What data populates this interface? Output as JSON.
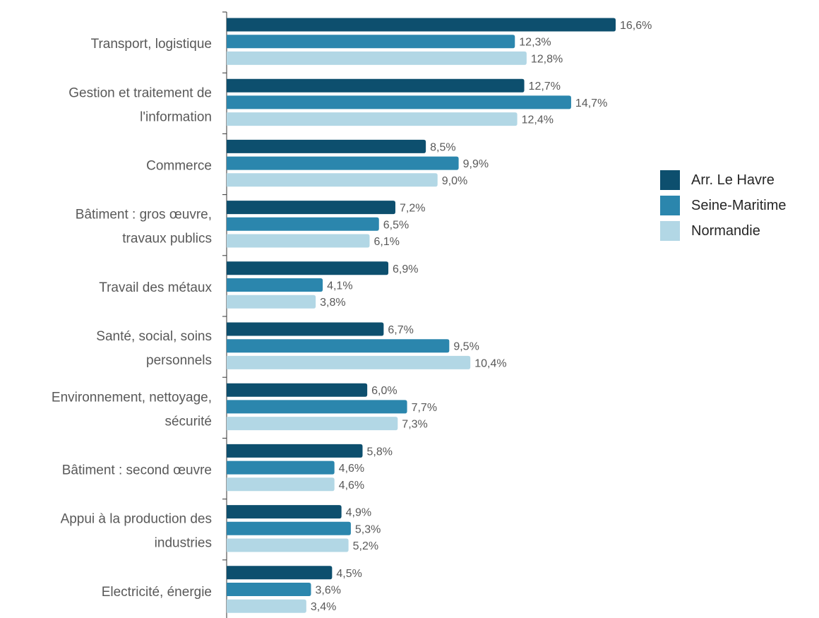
{
  "chart_data": {
    "type": "bar",
    "orientation": "horizontal",
    "categories": [
      "Transport, logistique",
      "Gestion et traitement de l'information",
      "Commerce",
      "Bâtiment : gros œuvre, travaux publics",
      "Travail des métaux",
      "Santé, social, soins personnels",
      "Environnement, nettoyage, sécurité",
      "Bâtiment : second œuvre",
      "Appui à la production des industries",
      "Electricité, énergie"
    ],
    "category_lines": [
      [
        "Transport, logistique"
      ],
      [
        "Gestion et traitement de",
        "l'information"
      ],
      [
        "Commerce"
      ],
      [
        "Bâtiment : gros œuvre,",
        "travaux publics"
      ],
      [
        "Travail des métaux"
      ],
      [
        "Santé, social, soins",
        "personnels"
      ],
      [
        "Environnement, nettoyage,",
        "sécurité"
      ],
      [
        "Bâtiment : second œuvre"
      ],
      [
        "Appui à la production des",
        "industries"
      ],
      [
        "Electricité, énergie"
      ]
    ],
    "series": [
      {
        "name": "Arr. Le Havre",
        "color": "#0d4f6e",
        "values": [
          16.6,
          12.7,
          8.5,
          7.2,
          6.9,
          6.7,
          6.0,
          5.8,
          4.9,
          4.5
        ],
        "labels": [
          "16,6%",
          "12,7%",
          "8,5%",
          "7,2%",
          "6,9%",
          "6,7%",
          "6,0%",
          "5,8%",
          "4,9%",
          "4,5%"
        ]
      },
      {
        "name": "Seine-Maritime",
        "color": "#2b86ad",
        "values": [
          12.3,
          14.7,
          9.9,
          6.5,
          4.1,
          9.5,
          7.7,
          4.6,
          5.3,
          3.6
        ],
        "labels": [
          "12,3%",
          "14,7%",
          "9,9%",
          "6,5%",
          "4,1%",
          "9,5%",
          "7,7%",
          "4,6%",
          "5,3%",
          "3,6%"
        ]
      },
      {
        "name": "Normandie",
        "color": "#b2d7e5",
        "values": [
          12.8,
          12.4,
          9.0,
          6.1,
          3.8,
          10.4,
          7.3,
          4.6,
          5.2,
          3.4
        ],
        "labels": [
          "12,8%",
          "12,4%",
          "9,0%",
          "6,1%",
          "3,8%",
          "10,4%",
          "7,3%",
          "4,6%",
          "5,2%",
          "3,4%"
        ]
      }
    ],
    "xlim": [
      0,
      16.6
    ],
    "grid": false,
    "legend_position": "right",
    "title": "",
    "xlabel": "",
    "ylabel": ""
  }
}
